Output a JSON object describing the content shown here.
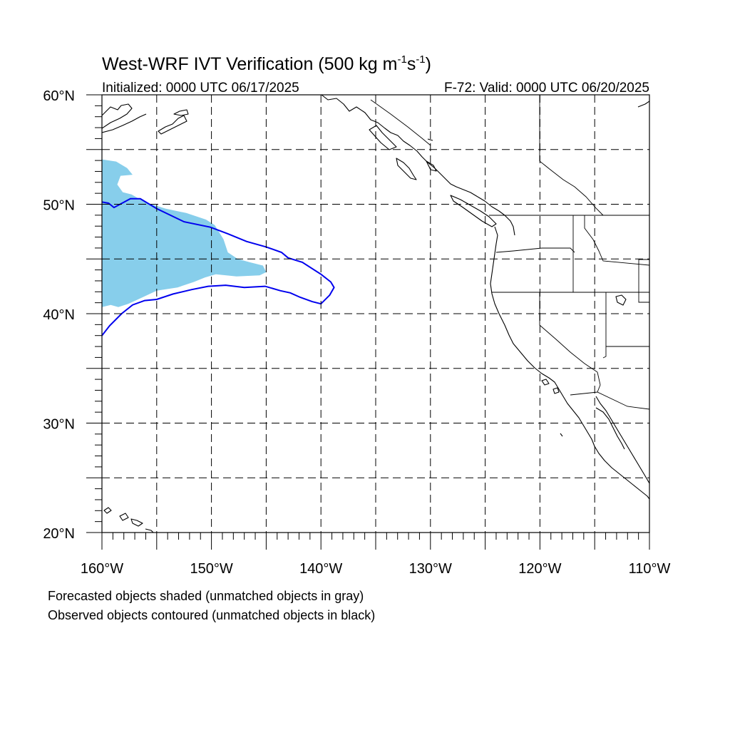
{
  "title": {
    "main": "West-WRF IVT Verification (500 kg m",
    "sup1": "-1",
    "mid": "s",
    "sup2": "-1",
    "end": ")"
  },
  "subtitle": {
    "left": "Initialized: 0000 UTC 06/17/2025",
    "right": "F-72: Valid: 0000 UTC 06/20/2025"
  },
  "axes": {
    "lat_labels": [
      "60°N",
      "50°N",
      "40°N",
      "30°N",
      "20°N"
    ],
    "lon_labels": [
      "160°W",
      "150°W",
      "140°W",
      "130°W",
      "120°W",
      "110°W"
    ],
    "lat_range": [
      20,
      60
    ],
    "lon_range": [
      -160,
      -110
    ],
    "grid_step_deg": 5,
    "grid": "dashed"
  },
  "footnotes": [
    "Forecasted objects shaded (unmatched objects in gray)",
    "Observed objects contoured (unmatched objects in black)"
  ],
  "colors": {
    "forecast_fill": "#87ceeb",
    "observed_contour": "#0000ee",
    "map_lines": "#000000"
  },
  "objects": {
    "forecast": {
      "label": "Forecasted object (shaded)",
      "outline_lonlat": [
        [
          -160,
          54.1
        ],
        [
          -158.7,
          53.9
        ],
        [
          -157.7,
          53.3
        ],
        [
          -157.2,
          52.7
        ],
        [
          -158.3,
          52.6
        ],
        [
          -158.6,
          51.8
        ],
        [
          -158.1,
          51.1
        ],
        [
          -157.3,
          50.9
        ],
        [
          -156.1,
          50.2
        ],
        [
          -154.2,
          49.6
        ],
        [
          -152.3,
          49.2
        ],
        [
          -150.5,
          48.6
        ],
        [
          -149.7,
          48.1
        ],
        [
          -148.9,
          46.8
        ],
        [
          -148.5,
          45.6
        ],
        [
          -147.6,
          45.0
        ],
        [
          -146.5,
          44.7
        ],
        [
          -145.3,
          44.4
        ],
        [
          -145.0,
          43.8
        ],
        [
          -145.6,
          43.5
        ],
        [
          -147.7,
          43.4
        ],
        [
          -149.6,
          43.6
        ],
        [
          -150.6,
          43.3
        ],
        [
          -151.6,
          42.9
        ],
        [
          -153.1,
          42.4
        ],
        [
          -155.0,
          42.1
        ],
        [
          -156.5,
          41.4
        ],
        [
          -157.6,
          40.9
        ],
        [
          -158.5,
          40.6
        ],
        [
          -159.2,
          40.8
        ],
        [
          -160,
          40.6
        ]
      ]
    },
    "observed": {
      "label": "Observed object (contour)",
      "outline_lonlat": [
        [
          -160,
          38.0
        ],
        [
          -159.3,
          38.9
        ],
        [
          -158.2,
          40.0
        ],
        [
          -157.2,
          40.8
        ],
        [
          -156.1,
          41.2
        ],
        [
          -155.0,
          41.3
        ],
        [
          -153.5,
          41.8
        ],
        [
          -151.8,
          42.2
        ],
        [
          -150.3,
          42.5
        ],
        [
          -148.7,
          42.6
        ],
        [
          -147.0,
          42.4
        ],
        [
          -145.1,
          42.5
        ],
        [
          -143.7,
          42.1
        ],
        [
          -142.8,
          41.9
        ],
        [
          -141.9,
          41.5
        ],
        [
          -140.8,
          41.1
        ],
        [
          -140.0,
          40.9
        ],
        [
          -139.2,
          41.7
        ],
        [
          -138.8,
          42.4
        ],
        [
          -139.1,
          42.9
        ],
        [
          -140.0,
          43.6
        ],
        [
          -141.7,
          44.7
        ],
        [
          -143.0,
          45.1
        ],
        [
          -143.6,
          45.6
        ],
        [
          -145.0,
          46.1
        ],
        [
          -146.8,
          46.6
        ],
        [
          -148.5,
          47.3
        ],
        [
          -150.1,
          47.9
        ],
        [
          -152.5,
          48.4
        ],
        [
          -155.0,
          49.6
        ],
        [
          -156.5,
          50.5
        ],
        [
          -157.4,
          50.5
        ],
        [
          -158.9,
          49.7
        ],
        [
          -159.4,
          50.1
        ],
        [
          -160,
          50.2
        ]
      ]
    }
  }
}
